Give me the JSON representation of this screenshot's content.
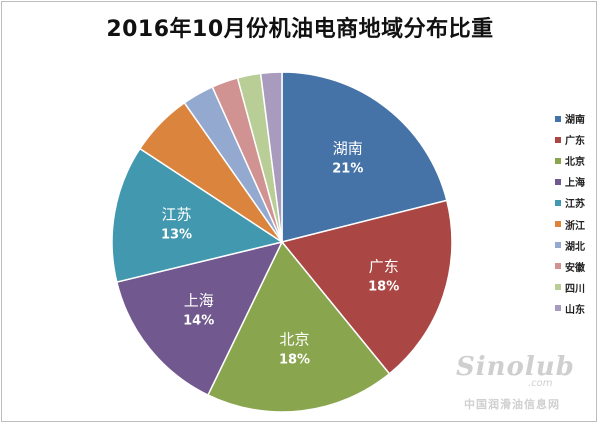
{
  "chart_data": {
    "type": "pie",
    "title": "2016年10月份机油电商地域分布比重",
    "legend_position": "right",
    "slices": [
      {
        "name": "湖南",
        "value": 21,
        "label": "21%",
        "color": "#4572A7"
      },
      {
        "name": "广东",
        "value": 18,
        "label": "18%",
        "color": "#AA4643"
      },
      {
        "name": "北京",
        "value": 18,
        "label": "18%",
        "color": "#89A54E"
      },
      {
        "name": "上海",
        "value": 14,
        "label": "14%",
        "color": "#71588F"
      },
      {
        "name": "江苏",
        "value": 13,
        "label": "13%",
        "color": "#4198AF"
      },
      {
        "name": "浙江",
        "value": 6,
        "label": "",
        "color": "#DB843D"
      },
      {
        "name": "湖北",
        "value": 3,
        "label": "",
        "color": "#93A9CF"
      },
      {
        "name": "安徽",
        "value": 2.5,
        "label": "",
        "color": "#D19392"
      },
      {
        "name": "四川",
        "value": 2.2,
        "label": "",
        "color": "#B9CD96"
      },
      {
        "name": "山东",
        "value": 2,
        "label": "",
        "color": "#A99BBD"
      }
    ]
  },
  "watermark": {
    "logo": "Sinolub",
    "domain": ".com",
    "site": "中国润滑油信息网"
  }
}
